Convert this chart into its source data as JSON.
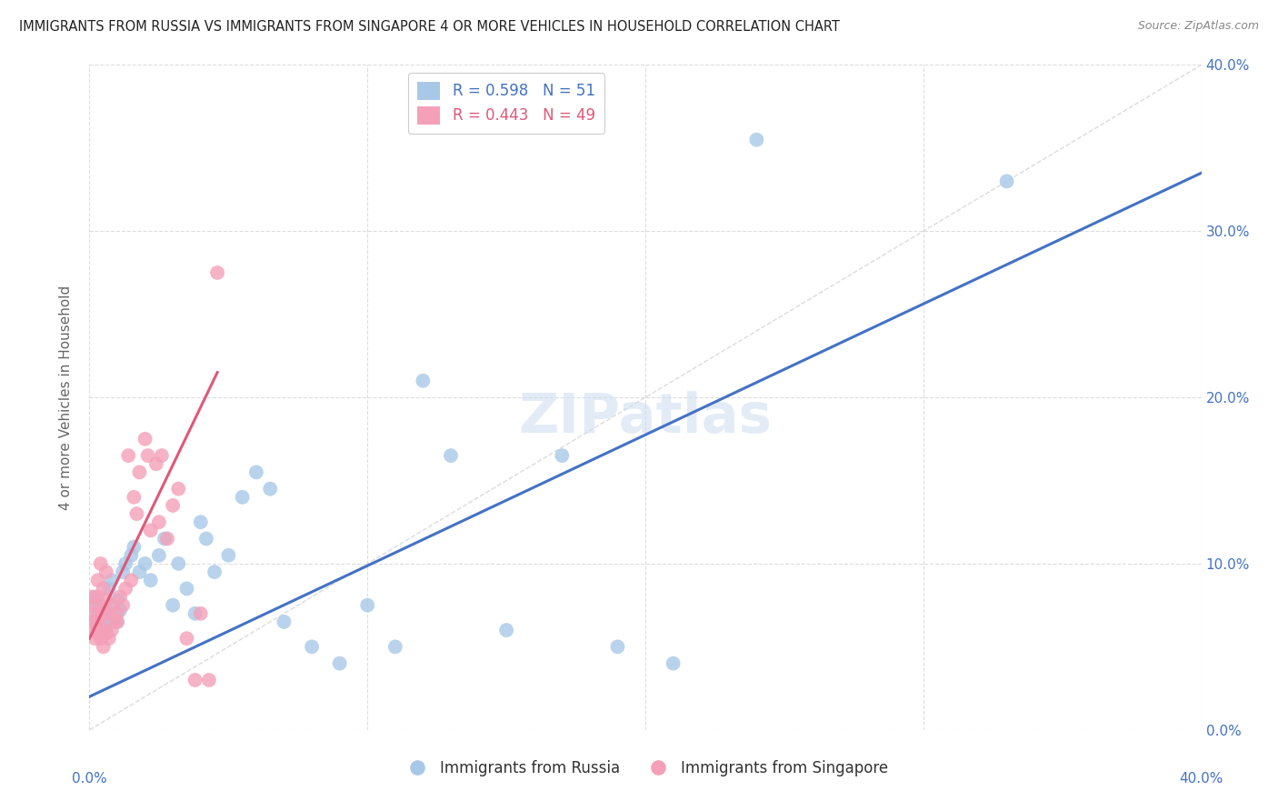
{
  "title": "IMMIGRANTS FROM RUSSIA VS IMMIGRANTS FROM SINGAPORE 4 OR MORE VEHICLES IN HOUSEHOLD CORRELATION CHART",
  "source": "Source: ZipAtlas.com",
  "ylabel": "4 or more Vehicles in Household",
  "xlim": [
    0.0,
    0.4
  ],
  "ylim": [
    0.0,
    0.4
  ],
  "russia_R": 0.598,
  "russia_N": 51,
  "singapore_R": 0.443,
  "singapore_N": 49,
  "russia_color": "#a8c8e8",
  "singapore_color": "#f4a0b8",
  "russia_line_color": "#4472c4",
  "singapore_line_color": "#e05878",
  "diagonal_color": "#cccccc",
  "russia_scatter_x": [
    0.001,
    0.002,
    0.002,
    0.003,
    0.003,
    0.004,
    0.004,
    0.005,
    0.005,
    0.006,
    0.006,
    0.007,
    0.008,
    0.008,
    0.009,
    0.01,
    0.01,
    0.011,
    0.012,
    0.013,
    0.015,
    0.016,
    0.018,
    0.02,
    0.022,
    0.025,
    0.027,
    0.03,
    0.032,
    0.035,
    0.038,
    0.04,
    0.042,
    0.045,
    0.05,
    0.055,
    0.06,
    0.065,
    0.07,
    0.08,
    0.09,
    0.1,
    0.11,
    0.12,
    0.13,
    0.15,
    0.17,
    0.19,
    0.21,
    0.24,
    0.33
  ],
  "russia_scatter_y": [
    0.075,
    0.065,
    0.08,
    0.06,
    0.07,
    0.058,
    0.075,
    0.062,
    0.068,
    0.072,
    0.06,
    0.085,
    0.065,
    0.09,
    0.07,
    0.078,
    0.065,
    0.072,
    0.095,
    0.1,
    0.105,
    0.11,
    0.095,
    0.1,
    0.09,
    0.105,
    0.115,
    0.075,
    0.1,
    0.085,
    0.07,
    0.125,
    0.115,
    0.095,
    0.105,
    0.14,
    0.155,
    0.145,
    0.065,
    0.05,
    0.04,
    0.075,
    0.05,
    0.21,
    0.165,
    0.06,
    0.165,
    0.05,
    0.04,
    0.355,
    0.33
  ],
  "singapore_scatter_x": [
    0.001,
    0.001,
    0.001,
    0.002,
    0.002,
    0.002,
    0.003,
    0.003,
    0.003,
    0.003,
    0.004,
    0.004,
    0.004,
    0.004,
    0.005,
    0.005,
    0.005,
    0.006,
    0.006,
    0.006,
    0.007,
    0.007,
    0.008,
    0.008,
    0.009,
    0.01,
    0.01,
    0.011,
    0.012,
    0.013,
    0.014,
    0.015,
    0.016,
    0.017,
    0.018,
    0.02,
    0.021,
    0.022,
    0.024,
    0.025,
    0.026,
    0.028,
    0.03,
    0.032,
    0.035,
    0.038,
    0.04,
    0.043,
    0.046
  ],
  "singapore_scatter_y": [
    0.06,
    0.065,
    0.08,
    0.055,
    0.07,
    0.075,
    0.058,
    0.065,
    0.08,
    0.09,
    0.055,
    0.062,
    0.068,
    0.1,
    0.05,
    0.072,
    0.085,
    0.058,
    0.078,
    0.095,
    0.055,
    0.07,
    0.06,
    0.075,
    0.065,
    0.07,
    0.065,
    0.08,
    0.075,
    0.085,
    0.165,
    0.09,
    0.14,
    0.13,
    0.155,
    0.175,
    0.165,
    0.12,
    0.16,
    0.125,
    0.165,
    0.115,
    0.135,
    0.145,
    0.055,
    0.03,
    0.07,
    0.03,
    0.275
  ],
  "russia_line_x": [
    0.0,
    0.4
  ],
  "russia_line_y": [
    0.02,
    0.335
  ],
  "singapore_line_x": [
    0.0,
    0.046
  ],
  "singapore_line_y": [
    0.055,
    0.215
  ],
  "watermark": "ZIPatlas",
  "background_color": "#ffffff",
  "grid_color": "#dddddd",
  "tick_color": "#4472c4",
  "axis_label_color": "#666666",
  "title_color": "#222222"
}
